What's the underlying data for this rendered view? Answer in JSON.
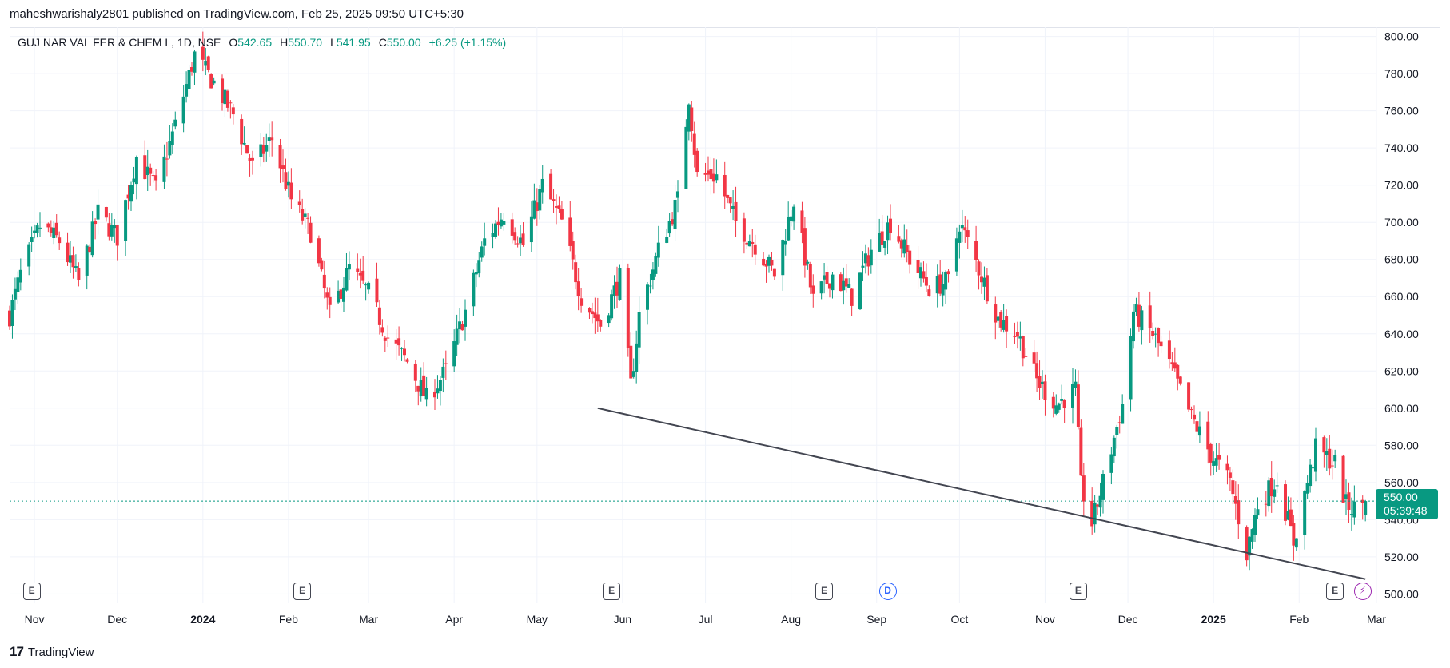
{
  "header": {
    "publisher_text": "maheshwarishaly2801 published on TradingView.com, Feb 25, 2025 09:50 UTC+5:30"
  },
  "legend": {
    "symbol": "GUJ NAR VAL FER & CHEM L, 1D, NSE",
    "open_label": "O",
    "open": "542.65",
    "high_label": "H",
    "high": "550.70",
    "low_label": "L",
    "low": "541.95",
    "close_label": "C",
    "close": "550.00",
    "change": "+6.25 (+1.15%)"
  },
  "price_badge": {
    "price": "550.00",
    "countdown": "05:39:48"
  },
  "footer": {
    "brand": "TradingView"
  },
  "colors": {
    "up": "#089981",
    "down": "#f23645",
    "grid": "#f0f3fa",
    "trendline": "#434651",
    "dividend": "#2962ff",
    "split": "#9c27b0"
  },
  "events": [
    {
      "label": "E",
      "type": "earnings",
      "date": "2023-10-31"
    },
    {
      "label": "E",
      "type": "earnings",
      "date": "2024-02-06"
    },
    {
      "label": "E",
      "type": "earnings",
      "date": "2024-05-28"
    },
    {
      "label": "E",
      "type": "earnings",
      "date": "2024-08-13"
    },
    {
      "label": "D",
      "type": "dividend",
      "date": "2024-09-05"
    },
    {
      "label": "E",
      "type": "earnings",
      "date": "2024-11-13"
    },
    {
      "label": "E",
      "type": "earnings",
      "date": "2025-02-14"
    },
    {
      "label": "⚡",
      "type": "split",
      "date": "2025-02-24"
    }
  ],
  "chart_data": {
    "type": "candlestick",
    "title": "GUJ NAR VAL FER & CHEM L, 1D, NSE",
    "xlabel": "",
    "ylabel": "",
    "x_ticks": [
      {
        "date": "2023-11-01",
        "label": "Nov",
        "bold": false
      },
      {
        "date": "2023-12-01",
        "label": "Dec",
        "bold": false
      },
      {
        "date": "2024-01-01",
        "label": "2024",
        "bold": true
      },
      {
        "date": "2024-02-01",
        "label": "Feb",
        "bold": false
      },
      {
        "date": "2024-03-01",
        "label": "Mar",
        "bold": false
      },
      {
        "date": "2024-04-01",
        "label": "Apr",
        "bold": false
      },
      {
        "date": "2024-05-01",
        "label": "May",
        "bold": false
      },
      {
        "date": "2024-06-01",
        "label": "Jun",
        "bold": false
      },
      {
        "date": "2024-07-01",
        "label": "Jul",
        "bold": false
      },
      {
        "date": "2024-08-01",
        "label": "Aug",
        "bold": false
      },
      {
        "date": "2024-09-01",
        "label": "Sep",
        "bold": false
      },
      {
        "date": "2024-10-01",
        "label": "Oct",
        "bold": false
      },
      {
        "date": "2024-11-01",
        "label": "Nov",
        "bold": false
      },
      {
        "date": "2024-12-01",
        "label": "Dec",
        "bold": false
      },
      {
        "date": "2025-01-01",
        "label": "2025",
        "bold": true
      },
      {
        "date": "2025-02-01",
        "label": "Feb",
        "bold": false
      },
      {
        "date": "2025-03-01",
        "label": "Mar",
        "bold": false
      }
    ],
    "y_ticks": [
      "800.00",
      "780.00",
      "760.00",
      "740.00",
      "720.00",
      "700.00",
      "680.00",
      "660.00",
      "640.00",
      "620.00",
      "600.00",
      "580.00",
      "560.00",
      "540.00",
      "520.00",
      "500.00"
    ],
    "ylim": [
      495,
      805
    ],
    "xlim": [
      "2023-10-23",
      "2025-03-01"
    ],
    "current_price": 550.0,
    "trendline": {
      "start": {
        "date": "2024-05-23",
        "value": 600
      },
      "end": {
        "date": "2025-02-25",
        "value": 508
      }
    },
    "series": [
      {
        "price_path": [
          [
            "2023-10-23",
            650
          ],
          [
            "2023-10-27",
            672
          ],
          [
            "2023-11-03",
            698
          ],
          [
            "2023-11-10",
            690
          ],
          [
            "2023-11-17",
            668
          ],
          [
            "2023-11-24",
            705
          ],
          [
            "2023-12-01",
            692
          ],
          [
            "2023-12-08",
            735
          ],
          [
            "2023-12-15",
            718
          ],
          [
            "2023-12-22",
            752
          ],
          [
            "2023-12-29",
            790
          ],
          [
            "2024-01-05",
            775
          ],
          [
            "2024-01-12",
            758
          ],
          [
            "2024-01-19",
            730
          ],
          [
            "2024-01-26",
            745
          ],
          [
            "2024-02-02",
            712
          ],
          [
            "2024-02-09",
            695
          ],
          [
            "2024-02-16",
            650
          ],
          [
            "2024-02-23",
            675
          ],
          [
            "2024-03-01",
            662
          ],
          [
            "2024-03-08",
            638
          ],
          [
            "2024-03-15",
            625
          ],
          [
            "2024-03-22",
            605
          ],
          [
            "2024-03-29",
            620
          ],
          [
            "2024-04-05",
            652
          ],
          [
            "2024-04-12",
            690
          ],
          [
            "2024-04-19",
            705
          ],
          [
            "2024-04-26",
            688
          ],
          [
            "2024-05-03",
            720
          ],
          [
            "2024-05-10",
            700
          ],
          [
            "2024-05-17",
            660
          ],
          [
            "2024-05-24",
            645
          ],
          [
            "2024-05-31",
            670
          ],
          [
            "2024-06-04",
            612
          ],
          [
            "2024-06-07",
            650
          ],
          [
            "2024-06-14",
            685
          ],
          [
            "2024-06-21",
            712
          ],
          [
            "2024-06-25",
            768
          ],
          [
            "2024-06-28",
            725
          ],
          [
            "2024-07-05",
            725
          ],
          [
            "2024-07-12",
            700
          ],
          [
            "2024-07-19",
            688
          ],
          [
            "2024-07-26",
            672
          ],
          [
            "2024-08-02",
            712
          ],
          [
            "2024-08-09",
            658
          ],
          [
            "2024-08-16",
            672
          ],
          [
            "2024-08-23",
            660
          ],
          [
            "2024-08-30",
            685
          ],
          [
            "2024-09-06",
            700
          ],
          [
            "2024-09-13",
            680
          ],
          [
            "2024-09-20",
            665
          ],
          [
            "2024-09-27",
            668
          ],
          [
            "2024-10-01",
            700
          ],
          [
            "2024-10-08",
            675
          ],
          [
            "2024-10-15",
            648
          ],
          [
            "2024-10-22",
            640
          ],
          [
            "2024-10-29",
            615
          ],
          [
            "2024-11-05",
            602
          ],
          [
            "2024-11-12",
            610
          ],
          [
            "2024-11-14",
            558
          ],
          [
            "2024-11-18",
            538
          ],
          [
            "2024-11-22",
            560
          ],
          [
            "2024-11-29",
            602
          ],
          [
            "2024-12-03",
            652
          ],
          [
            "2024-12-10",
            640
          ],
          [
            "2024-12-17",
            620
          ],
          [
            "2024-12-24",
            595
          ],
          [
            "2024-12-31",
            575
          ],
          [
            "2025-01-07",
            560
          ],
          [
            "2025-01-13",
            522
          ],
          [
            "2025-01-17",
            548
          ],
          [
            "2025-01-24",
            562
          ],
          [
            "2025-01-30",
            528
          ],
          [
            "2025-02-04",
            560
          ],
          [
            "2025-02-07",
            578
          ],
          [
            "2025-02-14",
            570
          ],
          [
            "2025-02-18",
            548
          ],
          [
            "2025-02-21",
            546
          ],
          [
            "2025-02-25",
            550
          ]
        ]
      }
    ]
  }
}
